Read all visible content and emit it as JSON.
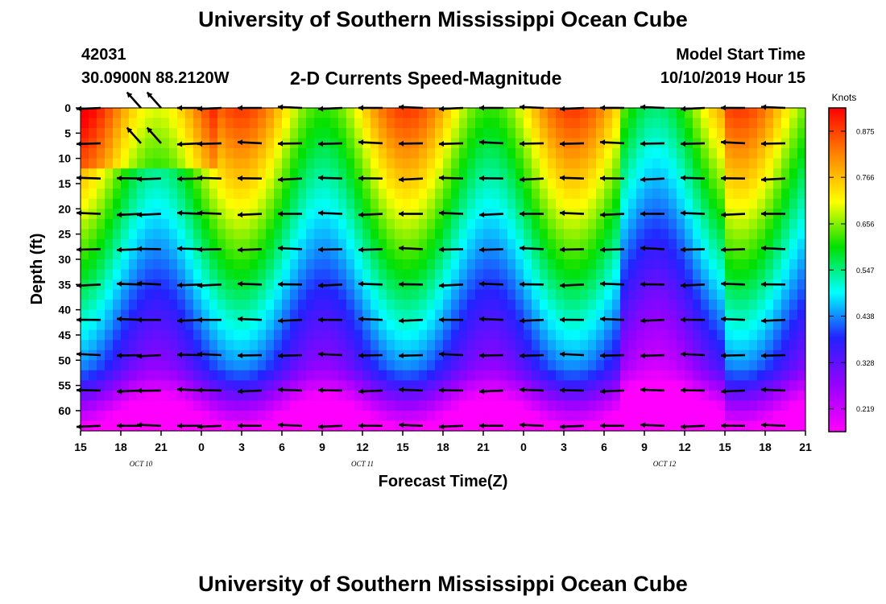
{
  "header": {
    "title_top": "University of Southern Mississippi Ocean Cube",
    "station_id": "42031",
    "station_coords": "30.0900N 88.2120W",
    "subtitle": "2-D Currents Speed-Magnitude",
    "model_label": "Model Start Time",
    "model_start": "10/10/2019 Hour 15",
    "title_bottom": "University of Southern Mississippi Ocean Cube"
  },
  "colors": {
    "scale": [
      "#ff00ff",
      "#9a00ff",
      "#2222ff",
      "#00ffff",
      "#00e000",
      "#ffff00",
      "#ff8000",
      "#ff0000"
    ]
  },
  "chart_data": {
    "type": "heatmap",
    "title": "2-D Currents Speed-Magnitude",
    "xlabel": "Forecast Time(Z)",
    "ylabel": "Depth (ft)",
    "x_ticks": [
      "15",
      "18",
      "21",
      "0",
      "3",
      "6",
      "9",
      "12",
      "15",
      "18",
      "21",
      "0",
      "3",
      "6",
      "9",
      "12",
      "15",
      "18",
      "21"
    ],
    "date_labels": [
      {
        "text": "OCT 10",
        "tick_index": 1.5
      },
      {
        "text": "OCT 11",
        "tick_index": 7
      },
      {
        "text": "OCT 12",
        "tick_index": 14.5
      }
    ],
    "y_ticks": [
      0,
      5,
      10,
      15,
      20,
      25,
      30,
      35,
      40,
      45,
      50,
      55,
      60
    ],
    "ylim": [
      0,
      64
    ],
    "xlim_hours": [
      0,
      54
    ],
    "colorbar": {
      "unit": "Knots",
      "min": 0.165,
      "max": 0.93,
      "ticks": [
        0.875,
        0.766,
        0.656,
        0.547,
        0.438,
        0.328,
        0.219
      ]
    },
    "vector_times_hours": [
      1.5,
      4.5,
      6.0,
      9.0,
      10.5,
      13.5,
      16.5,
      19.5,
      22.5,
      25.5,
      28.5,
      31.5,
      34.5,
      37.5,
      40.5,
      43.5,
      46.5,
      49.5,
      52.5
    ],
    "vector_depths_ft": [
      0,
      7,
      14,
      21,
      28,
      35,
      42,
      49,
      56,
      63
    ]
  }
}
